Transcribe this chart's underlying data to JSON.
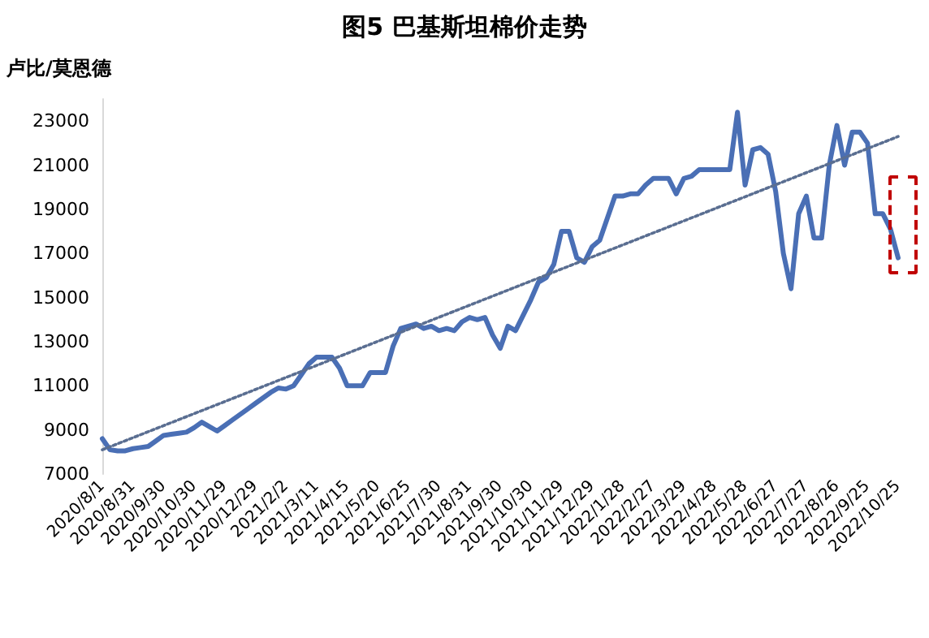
{
  "chart_data": {
    "type": "line",
    "title": "图5 巴基斯坦棉价走势",
    "ylabel": "卢比/莫恩德",
    "categories": [
      "2020/8/1",
      null,
      null,
      null,
      "2020/8/31",
      null,
      null,
      null,
      "2020/9/30",
      null,
      null,
      null,
      "2020/10/30",
      null,
      null,
      null,
      "2020/11/29",
      null,
      null,
      null,
      "2020/12/29",
      null,
      null,
      null,
      "2021/2/2",
      null,
      null,
      null,
      "2021/3/11",
      null,
      null,
      null,
      "2021/4/15",
      null,
      null,
      null,
      "2021/5/20",
      null,
      null,
      null,
      "2021/6/25",
      null,
      null,
      null,
      "2021/7/30",
      null,
      null,
      null,
      "2021/8/31",
      null,
      null,
      null,
      "2021/9/30",
      null,
      null,
      null,
      "2021/10/30",
      null,
      null,
      null,
      "2021/11/29",
      null,
      null,
      null,
      "2021/12/29",
      null,
      null,
      null,
      "2022/1/28",
      null,
      null,
      null,
      "2022/2/27",
      null,
      null,
      null,
      "2022/3/29",
      null,
      null,
      null,
      "2022/4/28",
      null,
      null,
      null,
      "2022/5/28",
      null,
      null,
      null,
      "2022/6/27",
      null,
      null,
      null,
      "2022/7/27",
      null,
      null,
      null,
      "2022/8/26",
      null,
      null,
      null,
      "2022/9/25",
      null,
      null,
      null,
      "2022/10/25"
    ],
    "series": [
      {
        "color": "#4a6fb5",
        "line_style": "solid",
        "values": [
          8600,
          8100,
          8050,
          8050,
          8150,
          8200,
          8250,
          8500,
          8750,
          8800,
          8850,
          8900,
          9100,
          9350,
          9150,
          8950,
          9200,
          9450,
          9700,
          9950,
          10200,
          10450,
          10700,
          10900,
          10850,
          11000,
          11500,
          12000,
          12300,
          12300,
          12300,
          11800,
          11000,
          11000,
          11000,
          11600,
          11600,
          11600,
          12800,
          13600,
          13700,
          13800,
          13600,
          13700,
          13500,
          13600,
          13500,
          13900,
          14100,
          14000,
          14100,
          13300,
          12700,
          13700,
          13500,
          14200,
          14900,
          15700,
          15900,
          16500,
          18000,
          18000,
          16800,
          16600,
          17300,
          17600,
          18600,
          19600,
          19600,
          19700,
          19700,
          20100,
          20400,
          20400,
          20400,
          19700,
          20400,
          20500,
          20800,
          20800,
          20800,
          20800,
          20800,
          23400,
          20100,
          21700,
          21800,
          21500,
          19800,
          17000,
          15400,
          18800,
          19600,
          17700,
          17700,
          21000,
          22800,
          21000,
          22500,
          22500,
          22000,
          18800,
          18800,
          18100,
          16800
        ]
      },
      {
        "color": "#5a6e91",
        "line_style": "dotted",
        "values": [
          8100,
          null,
          null,
          null,
          null,
          null,
          null,
          null,
          null,
          null,
          null,
          null,
          null,
          null,
          null,
          null,
          null,
          null,
          null,
          null,
          null,
          null,
          null,
          null,
          null,
          null,
          null,
          null,
          null,
          null,
          null,
          null,
          null,
          null,
          null,
          null,
          null,
          null,
          null,
          null,
          null,
          null,
          null,
          null,
          null,
          null,
          null,
          null,
          null,
          null,
          null,
          null,
          null,
          null,
          null,
          null,
          null,
          null,
          null,
          null,
          null,
          null,
          null,
          null,
          null,
          null,
          null,
          null,
          null,
          null,
          null,
          null,
          null,
          null,
          null,
          null,
          null,
          null,
          null,
          null,
          null,
          null,
          null,
          null,
          null,
          null,
          null,
          null,
          null,
          null,
          null,
          null,
          null,
          null,
          null,
          null,
          null,
          null,
          null,
          null,
          null,
          null,
          null,
          null,
          22300
        ]
      }
    ],
    "ylim": [
      7000,
      24000
    ],
    "yticks": [
      7000,
      9000,
      11000,
      13000,
      15000,
      17000,
      19000,
      21000,
      23000
    ],
    "marker": "none"
  }
}
